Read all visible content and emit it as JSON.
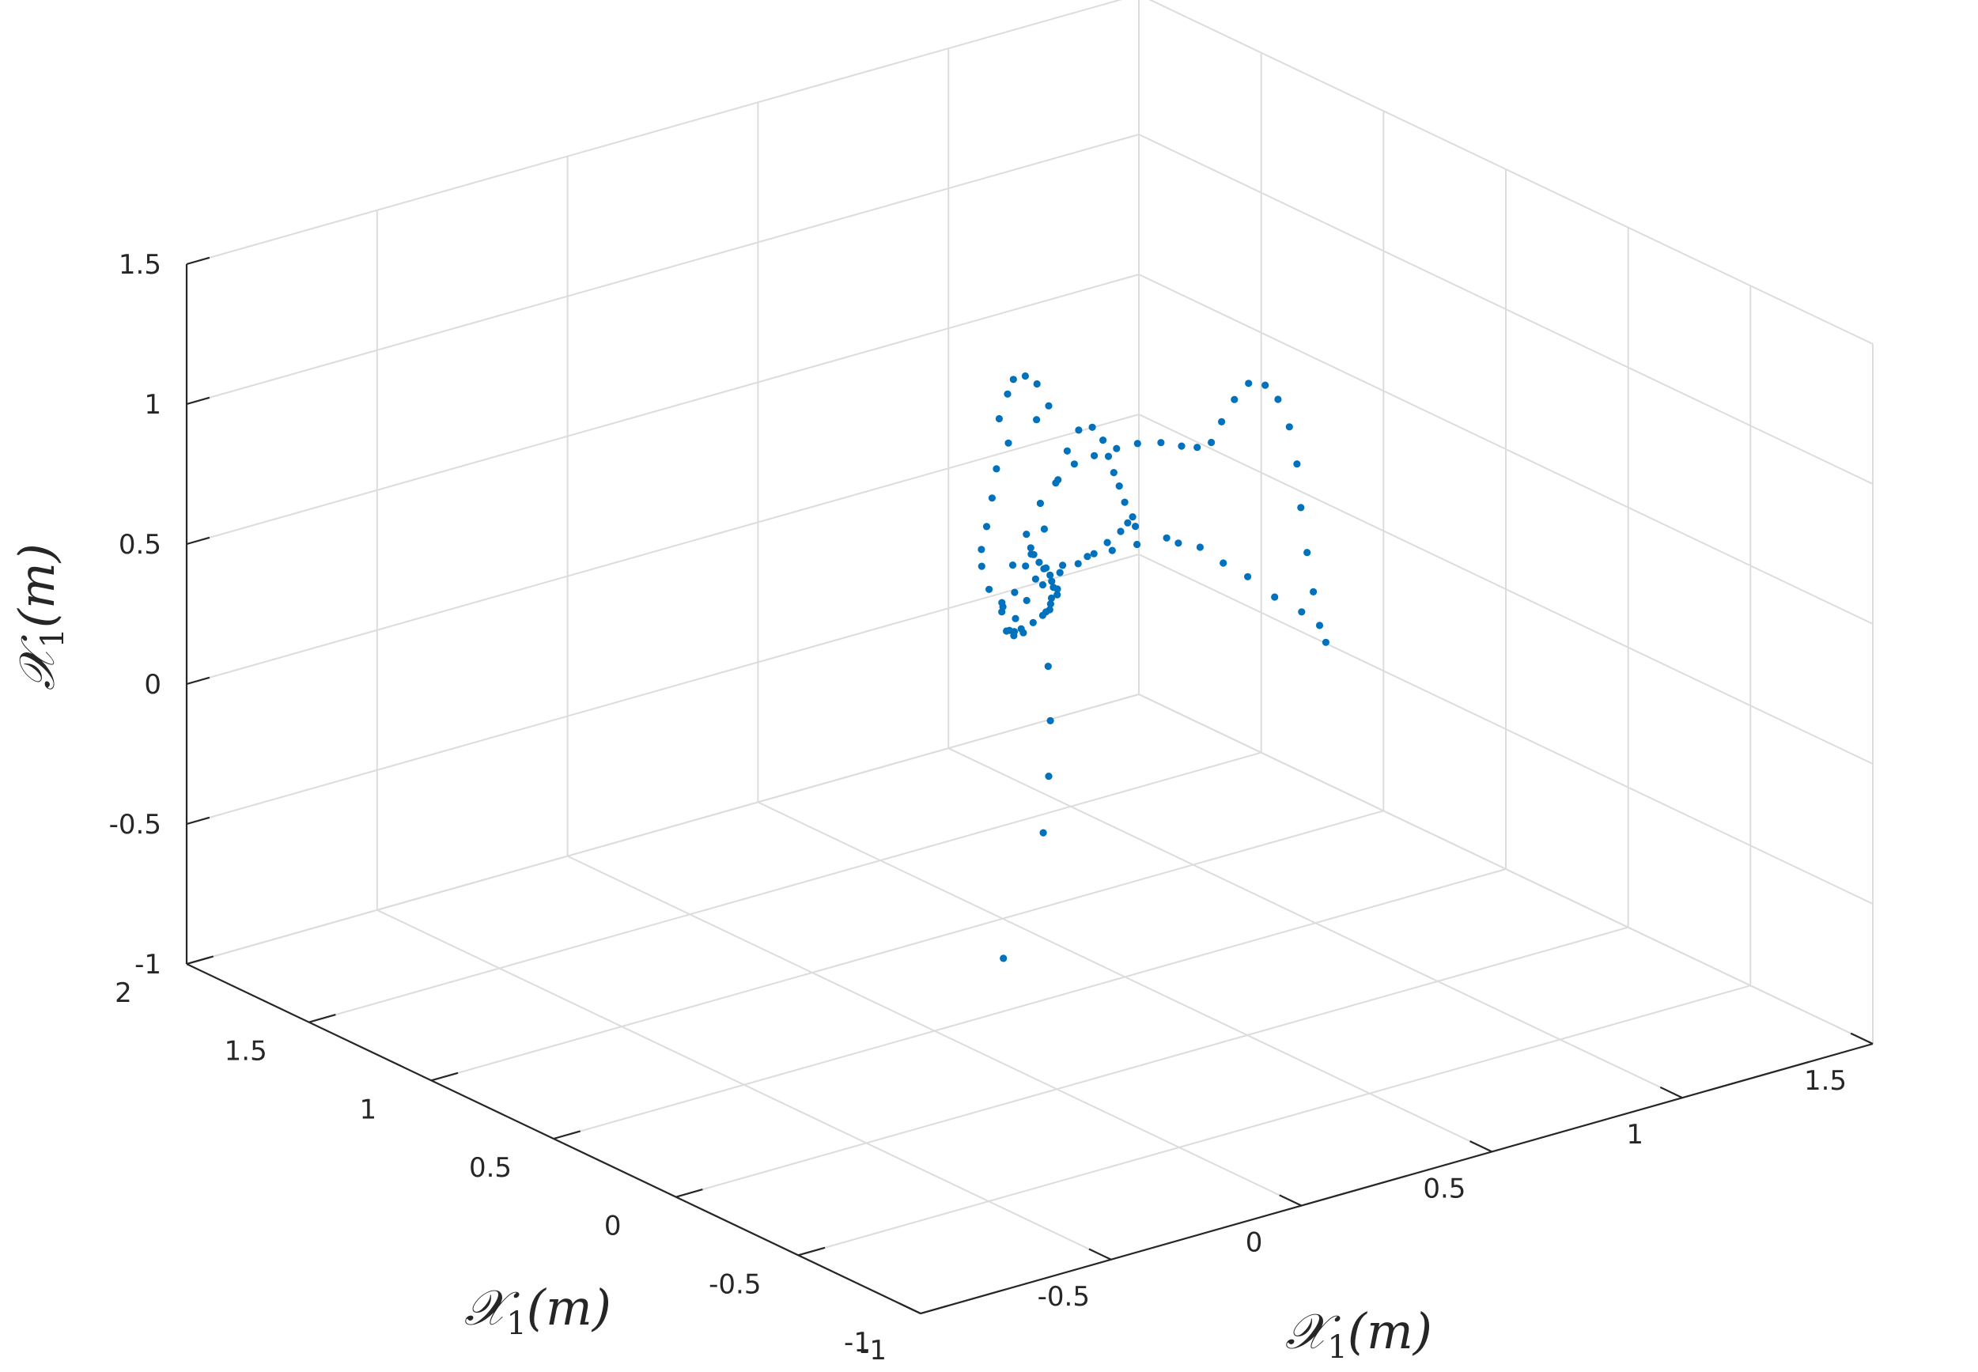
{
  "chart_data": {
    "type": "scatter",
    "projection": "3d",
    "grid": true,
    "box": "back-panes",
    "axes": {
      "x": {
        "label_text": "𝒳",
        "label_sub": "1",
        "label_unit": "(m)",
        "lim": [
          -1,
          1.5
        ],
        "ticks": [
          -1,
          -0.5,
          0,
          0.5,
          1,
          1.5
        ],
        "tick_labels": [
          "-1",
          "-0.5",
          "0",
          "0.5",
          "1",
          "1.5"
        ]
      },
      "y": {
        "label_text": "𝒳",
        "label_sub": "1",
        "label_unit": "(m)",
        "lim": [
          -1,
          2
        ],
        "ticks": [
          -1,
          -0.5,
          0,
          0.5,
          1,
          1.5,
          2
        ],
        "tick_labels": [
          "-1",
          "-0.5",
          "0",
          "0.5",
          "1",
          "1.5",
          "2"
        ]
      },
      "z": {
        "label_text": "𝒳",
        "label_sub": "1",
        "label_unit": "(m)",
        "lim": [
          -1,
          1.5
        ],
        "ticks": [
          -1,
          -0.5,
          0,
          0.5,
          1,
          1.5
        ],
        "tick_labels": [
          "-1",
          "-0.5",
          "0",
          "0.5",
          "1",
          "1.5"
        ]
      }
    },
    "marker_color": "#0072bd",
    "series": [
      {
        "points": [
          [
            -0.1,
            0.08,
            1.4
          ],
          [
            -0.02,
            0.17,
            1.42
          ],
          [
            0.04,
            0.24,
            1.42
          ],
          [
            0.11,
            0.3,
            1.38
          ],
          [
            0.16,
            0.33,
            1.32
          ],
          [
            0.21,
            0.36,
            1.21
          ],
          [
            0.21,
            0.41,
            1.14
          ],
          [
            -0.14,
            -0.02,
            1.37
          ],
          [
            -0.21,
            -0.08,
            1.33
          ],
          [
            -0.26,
            -0.14,
            1.27
          ],
          [
            -0.3,
            -0.18,
            1.2
          ],
          [
            -0.32,
            -0.19,
            1.13
          ],
          [
            -0.3,
            -0.16,
            1.05
          ],
          [
            -0.3,
            -0.19,
            0.98
          ],
          [
            -0.27,
            -0.2,
            0.91
          ],
          [
            -0.22,
            -0.17,
            0.93
          ],
          [
            -0.14,
            -0.09,
            0.96
          ],
          [
            -0.08,
            -0.02,
            0.95
          ],
          [
            -0.03,
            0.06,
            0.92
          ],
          [
            0.01,
            0.11,
            0.86
          ],
          [
            0.05,
            0.15,
            0.8
          ],
          [
            0.1,
            0.2,
            0.74
          ],
          [
            0.13,
            0.23,
            0.69
          ],
          [
            0.16,
            0.27,
            0.64
          ],
          [
            0.19,
            0.31,
            0.59
          ],
          [
            0.22,
            0.34,
            0.56
          ],
          [
            0.2,
            0.31,
            0.56
          ],
          [
            0.14,
            0.24,
            0.6
          ],
          [
            0.08,
            0.15,
            0.64
          ],
          [
            0.02,
            0.06,
            0.68
          ],
          [
            -0.05,
            -0.02,
            0.72
          ],
          [
            -0.12,
            -0.09,
            0.75
          ],
          [
            -0.19,
            -0.15,
            0.78
          ],
          [
            -0.24,
            -0.2,
            0.81
          ],
          [
            -0.28,
            -0.23,
            0.84
          ],
          [
            -0.26,
            -0.18,
            0.88
          ],
          [
            -0.21,
            -0.19,
            0.79
          ],
          [
            -0.12,
            -0.1,
            0.91
          ],
          [
            -0.02,
            0.02,
            1.0
          ],
          [
            0.1,
            0.16,
            1.06
          ],
          [
            0.22,
            0.3,
            1.07
          ],
          [
            0.34,
            0.44,
            1.04
          ],
          [
            0.44,
            0.54,
            0.97
          ],
          [
            0.5,
            0.59,
            0.88
          ],
          [
            0.54,
            0.63,
            0.79
          ],
          [
            0.58,
            0.67,
            0.7
          ],
          [
            0.62,
            0.71,
            0.62
          ],
          [
            0.66,
            0.75,
            0.53
          ],
          [
            0.7,
            0.78,
            0.45
          ],
          [
            0.72,
            0.8,
            0.4
          ],
          [
            0.7,
            0.8,
            0.42
          ],
          [
            0.63,
            0.72,
            0.45
          ],
          [
            0.55,
            0.65,
            0.47
          ],
          [
            0.47,
            0.58,
            0.49
          ],
          [
            0.39,
            0.52,
            0.51
          ],
          [
            0.31,
            0.47,
            0.53
          ],
          [
            0.22,
            0.4,
            0.55
          ],
          [
            0.12,
            0.31,
            0.57
          ],
          [
            0.02,
            0.2,
            0.59
          ],
          [
            -0.06,
            0.1,
            0.62
          ],
          [
            -0.1,
            0.02,
            0.65
          ],
          [
            -0.17,
            -0.04,
            0.82
          ],
          [
            -0.09,
            0.04,
            0.89
          ],
          [
            0.01,
            0.14,
            0.92
          ],
          [
            0.13,
            0.27,
            0.93
          ],
          [
            0.26,
            0.4,
            0.91
          ],
          [
            0.38,
            0.52,
            0.87
          ],
          [
            0.49,
            0.61,
            0.82
          ],
          [
            0.6,
            0.69,
            0.77
          ],
          [
            0.7,
            0.76,
            0.72
          ],
          [
            0.8,
            0.82,
            0.66
          ],
          [
            0.88,
            0.86,
            0.6
          ],
          [
            0.94,
            0.89,
            0.56
          ],
          [
            0.99,
            0.91,
            0.55
          ],
          [
            1.03,
            0.93,
            0.6
          ],
          [
            1.07,
            0.94,
            0.66
          ],
          [
            1.12,
            0.96,
            0.69
          ],
          [
            1.17,
            0.97,
            0.66
          ],
          [
            1.21,
            0.98,
            0.59
          ],
          [
            1.24,
            0.98,
            0.48
          ],
          [
            1.26,
            0.98,
            0.34
          ],
          [
            1.27,
            0.98,
            0.18
          ],
          [
            1.28,
            0.97,
            0.02
          ],
          [
            1.29,
            0.96,
            -0.12
          ],
          [
            1.3,
            0.95,
            -0.24
          ],
          [
            1.31,
            0.94,
            -0.3
          ],
          [
            1.24,
            0.93,
            -0.16
          ],
          [
            1.15,
            0.9,
            -0.06
          ],
          [
            1.06,
            0.87,
            0.06
          ],
          [
            0.97,
            0.83,
            0.16
          ],
          [
            0.89,
            0.8,
            0.26
          ],
          [
            0.82,
            0.78,
            0.31
          ],
          [
            0.77,
            0.75,
            0.36
          ],
          [
            0.66,
            0.7,
            0.4
          ],
          [
            0.55,
            0.63,
            0.45
          ],
          [
            0.44,
            0.56,
            0.5
          ],
          [
            0.33,
            0.49,
            0.54
          ],
          [
            0.21,
            0.38,
            0.62
          ],
          [
            0.19,
            0.34,
            0.49
          ],
          [
            0.17,
            0.3,
            0.32
          ],
          [
            0.15,
            0.26,
            0.15
          ],
          [
            0.12,
            0.22,
            -0.02
          ],
          [
            0.08,
            0.18,
            -0.19
          ],
          [
            -0.41,
            -0.42,
            -0.2
          ]
        ]
      }
    ]
  }
}
